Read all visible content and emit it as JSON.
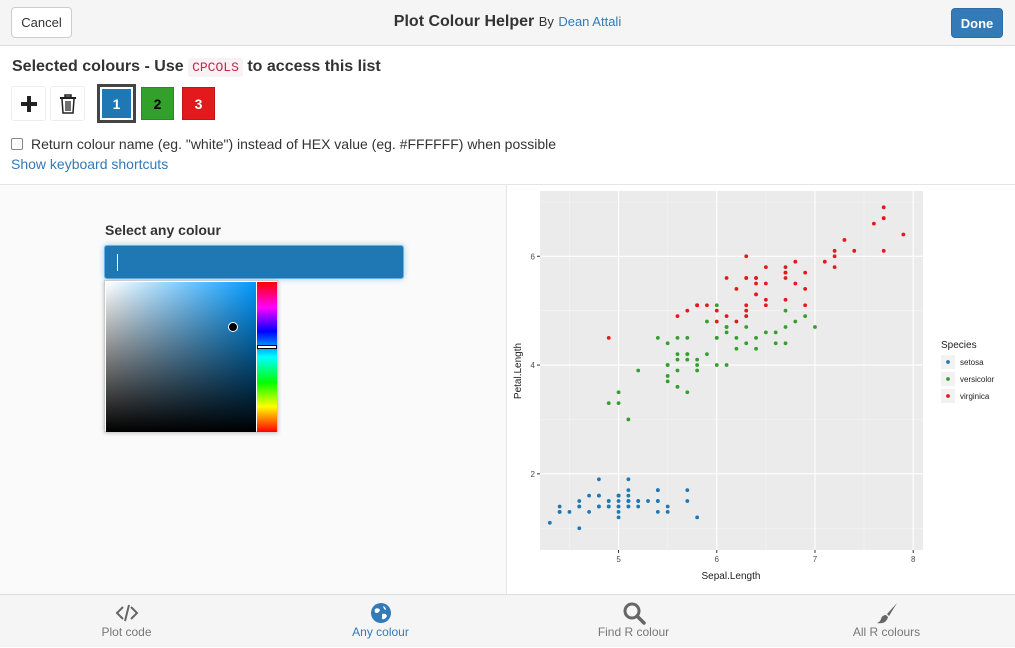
{
  "header": {
    "cancel_label": "Cancel",
    "title": "Plot Colour Helper",
    "by_label": "By",
    "author": "Dean Attali",
    "done_label": "Done"
  },
  "selected": {
    "heading_pre": "Selected colours - Use",
    "heading_code": "CPCOLS",
    "heading_post": "to access this list",
    "add_icon": "plus-icon",
    "delete_icon": "trash-icon",
    "swatches": [
      {
        "label": "1",
        "color": "#1f78b4",
        "text_color": "#ffffff",
        "selected": true
      },
      {
        "label": "2",
        "color": "#33a02c",
        "text_color": "#000000",
        "selected": false
      },
      {
        "label": "3",
        "color": "#e31a1c",
        "text_color": "#ffffff",
        "selected": false
      }
    ],
    "checkbox_label": "Return colour name (eg. \"white\") instead of HEX value (eg. #FFFFFF) when possible",
    "checkbox_checked": false,
    "shortcuts_link": "Show keyboard shortcuts"
  },
  "picker": {
    "label": "Select any colour",
    "current_color": "#1f78b4"
  },
  "chart_data": {
    "type": "scatter",
    "xlabel": "Sepal.Length",
    "ylabel": "Petal.Length",
    "xlim": [
      4.2,
      8.1
    ],
    "ylim": [
      0.6,
      7.2
    ],
    "x_ticks": [
      5,
      6,
      7,
      8
    ],
    "y_ticks": [
      2,
      4,
      6
    ],
    "grid": true,
    "legend_title": "Species",
    "legend_position": "right",
    "series": [
      {
        "name": "setosa",
        "color": "#1f78b4",
        "points": [
          [
            5.1,
            1.4
          ],
          [
            4.9,
            1.4
          ],
          [
            4.7,
            1.3
          ],
          [
            4.6,
            1.5
          ],
          [
            5.0,
            1.4
          ],
          [
            5.4,
            1.7
          ],
          [
            4.6,
            1.4
          ],
          [
            5.0,
            1.5
          ],
          [
            4.4,
            1.4
          ],
          [
            4.9,
            1.5
          ],
          [
            5.4,
            1.5
          ],
          [
            4.8,
            1.6
          ],
          [
            4.8,
            1.4
          ],
          [
            4.3,
            1.1
          ],
          [
            5.8,
            1.2
          ],
          [
            5.7,
            1.5
          ],
          [
            5.4,
            1.3
          ],
          [
            5.1,
            1.4
          ],
          [
            5.7,
            1.7
          ],
          [
            5.1,
            1.5
          ],
          [
            5.4,
            1.7
          ],
          [
            5.1,
            1.5
          ],
          [
            4.6,
            1.0
          ],
          [
            5.1,
            1.7
          ],
          [
            4.8,
            1.9
          ],
          [
            5.0,
            1.6
          ],
          [
            5.0,
            1.6
          ],
          [
            5.2,
            1.5
          ],
          [
            5.2,
            1.4
          ],
          [
            4.7,
            1.6
          ],
          [
            4.8,
            1.6
          ],
          [
            5.4,
            1.5
          ],
          [
            5.2,
            1.5
          ],
          [
            5.5,
            1.4
          ],
          [
            4.9,
            1.5
          ],
          [
            5.0,
            1.2
          ],
          [
            5.5,
            1.3
          ],
          [
            4.9,
            1.4
          ],
          [
            4.4,
            1.3
          ],
          [
            5.1,
            1.5
          ],
          [
            5.0,
            1.3
          ],
          [
            4.5,
            1.3
          ],
          [
            4.4,
            1.3
          ],
          [
            5.0,
            1.6
          ],
          [
            5.1,
            1.9
          ],
          [
            4.8,
            1.4
          ],
          [
            5.1,
            1.6
          ],
          [
            4.6,
            1.4
          ],
          [
            5.3,
            1.5
          ],
          [
            5.0,
            1.4
          ]
        ]
      },
      {
        "name": "versicolor",
        "color": "#33a02c",
        "points": [
          [
            7.0,
            4.7
          ],
          [
            6.4,
            4.5
          ],
          [
            6.9,
            4.9
          ],
          [
            5.5,
            4.0
          ],
          [
            6.5,
            4.6
          ],
          [
            5.7,
            4.5
          ],
          [
            6.3,
            4.7
          ],
          [
            4.9,
            3.3
          ],
          [
            6.6,
            4.6
          ],
          [
            5.2,
            3.9
          ],
          [
            5.0,
            3.5
          ],
          [
            5.9,
            4.2
          ],
          [
            6.0,
            4.0
          ],
          [
            6.1,
            4.7
          ],
          [
            5.6,
            3.6
          ],
          [
            6.7,
            4.4
          ],
          [
            5.6,
            4.5
          ],
          [
            5.8,
            4.1
          ],
          [
            6.2,
            4.5
          ],
          [
            5.6,
            3.9
          ],
          [
            5.9,
            4.8
          ],
          [
            6.1,
            4.0
          ],
          [
            6.3,
            4.9
          ],
          [
            6.1,
            4.7
          ],
          [
            6.4,
            4.3
          ],
          [
            6.6,
            4.4
          ],
          [
            6.8,
            4.8
          ],
          [
            6.7,
            5.0
          ],
          [
            6.0,
            4.5
          ],
          [
            5.7,
            3.5
          ],
          [
            5.5,
            3.8
          ],
          [
            5.5,
            3.7
          ],
          [
            5.8,
            3.9
          ],
          [
            6.0,
            5.1
          ],
          [
            5.4,
            4.5
          ],
          [
            6.0,
            4.5
          ],
          [
            6.7,
            4.7
          ],
          [
            6.3,
            4.4
          ],
          [
            5.6,
            4.1
          ],
          [
            5.5,
            4.0
          ],
          [
            5.5,
            4.4
          ],
          [
            6.1,
            4.6
          ],
          [
            5.8,
            4.0
          ],
          [
            5.0,
            3.3
          ],
          [
            5.6,
            4.2
          ],
          [
            5.7,
            4.2
          ],
          [
            5.7,
            4.2
          ],
          [
            6.2,
            4.3
          ],
          [
            5.1,
            3.0
          ],
          [
            5.7,
            4.1
          ]
        ]
      },
      {
        "name": "virginica",
        "color": "#e31a1c",
        "points": [
          [
            6.3,
            6.0
          ],
          [
            5.8,
            5.1
          ],
          [
            7.1,
            5.9
          ],
          [
            6.3,
            5.6
          ],
          [
            6.5,
            5.8
          ],
          [
            7.6,
            6.6
          ],
          [
            4.9,
            4.5
          ],
          [
            7.3,
            6.3
          ],
          [
            6.7,
            5.8
          ],
          [
            7.2,
            6.1
          ],
          [
            6.5,
            5.1
          ],
          [
            6.4,
            5.3
          ],
          [
            6.8,
            5.5
          ],
          [
            5.7,
            5.0
          ],
          [
            5.8,
            5.1
          ],
          [
            6.4,
            5.3
          ],
          [
            6.5,
            5.5
          ],
          [
            7.7,
            6.7
          ],
          [
            7.7,
            6.9
          ],
          [
            6.0,
            5.0
          ],
          [
            6.9,
            5.7
          ],
          [
            5.6,
            4.9
          ],
          [
            7.7,
            6.7
          ],
          [
            6.3,
            4.9
          ],
          [
            6.7,
            5.7
          ],
          [
            7.2,
            6.0
          ],
          [
            6.2,
            4.8
          ],
          [
            6.1,
            4.9
          ],
          [
            6.4,
            5.6
          ],
          [
            7.2,
            5.8
          ],
          [
            7.4,
            6.1
          ],
          [
            7.9,
            6.4
          ],
          [
            6.4,
            5.6
          ],
          [
            6.3,
            5.1
          ],
          [
            6.1,
            5.6
          ],
          [
            7.7,
            6.1
          ],
          [
            6.3,
            5.6
          ],
          [
            6.4,
            5.5
          ],
          [
            6.0,
            4.8
          ],
          [
            6.9,
            5.4
          ],
          [
            6.7,
            5.6
          ],
          [
            6.9,
            5.1
          ],
          [
            5.8,
            5.1
          ],
          [
            6.8,
            5.9
          ],
          [
            6.7,
            5.7
          ],
          [
            6.7,
            5.2
          ],
          [
            6.3,
            5.0
          ],
          [
            6.5,
            5.2
          ],
          [
            6.2,
            5.4
          ],
          [
            5.9,
            5.1
          ]
        ]
      }
    ]
  },
  "nav": {
    "items": [
      {
        "label": "Plot code",
        "icon": "code-icon",
        "active": false
      },
      {
        "label": "Any colour",
        "icon": "globe-icon",
        "active": true
      },
      {
        "label": "Find R colour",
        "icon": "search-icon",
        "active": false
      },
      {
        "label": "All R colours",
        "icon": "paintbrush-icon",
        "active": false
      }
    ]
  }
}
